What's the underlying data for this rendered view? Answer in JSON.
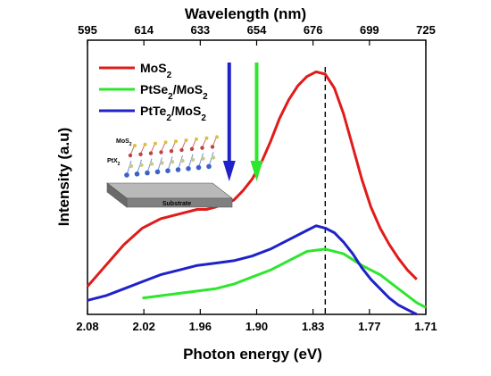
{
  "chart_data": {
    "type": "line",
    "xlabel": "Photon energy (eV)",
    "ylabel": "Intensity (a.u)",
    "top_axis_label": "Wavelength (nm)",
    "xlim": [
      2.08,
      1.71
    ],
    "x_reversed": true,
    "ylim": [
      0,
      1
    ],
    "x_ticks": [
      "2.08",
      "2.02",
      "1.96",
      "1.90",
      "1.83",
      "1.77",
      "1.71"
    ],
    "x_tick_values": [
      2.08,
      2.02,
      1.96,
      1.9,
      1.83,
      1.77,
      1.71
    ],
    "top_ticks": [
      "595",
      "614",
      "633",
      "654",
      "676",
      "699",
      "725"
    ],
    "y_ticks_shown": false,
    "legend_position": "top-left",
    "reference_line_x": 1.82,
    "arrows": [
      {
        "x": 1.925,
        "color": "#1f22c8"
      },
      {
        "x": 1.895,
        "color": "#2ee62e"
      }
    ],
    "series": [
      {
        "name": "MoS2",
        "name_sub": {
          "base": "MoS",
          "sub": "2",
          "rest": ""
        },
        "color": "#e01b1b",
        "x": [
          2.08,
          2.06,
          2.04,
          2.02,
          2.0,
          1.98,
          1.96,
          1.95,
          1.94,
          1.92,
          1.91,
          1.9,
          1.89,
          1.88,
          1.87,
          1.86,
          1.85,
          1.84,
          1.83,
          1.82,
          1.81,
          1.8,
          1.79,
          1.78,
          1.77,
          1.76,
          1.75,
          1.74,
          1.73,
          1.72
        ],
        "values": [
          0.12,
          0.21,
          0.3,
          0.37,
          0.41,
          0.43,
          0.45,
          0.45,
          0.46,
          0.49,
          0.53,
          0.58,
          0.65,
          0.74,
          0.84,
          0.92,
          0.98,
          1.02,
          1.04,
          1.03,
          0.97,
          0.86,
          0.72,
          0.58,
          0.46,
          0.37,
          0.3,
          0.24,
          0.19,
          0.15
        ]
      },
      {
        "name": "PtSe2/MoS2",
        "name_sub": {
          "base": "PtSe",
          "sub": "2",
          "rest": "/MoS",
          "sub2": "2"
        },
        "color": "#2ee62e",
        "x": [
          2.02,
          2.0,
          1.98,
          1.96,
          1.94,
          1.92,
          1.9,
          1.88,
          1.86,
          1.84,
          1.82,
          1.8,
          1.78,
          1.76,
          1.74,
          1.72,
          1.71
        ],
        "values": [
          0.07,
          0.08,
          0.09,
          0.1,
          0.11,
          0.13,
          0.16,
          0.19,
          0.23,
          0.27,
          0.28,
          0.26,
          0.21,
          0.17,
          0.11,
          0.05,
          0.03
        ]
      },
      {
        "name": "PtTe2/MoS2",
        "name_sub": {
          "base": "PtTe",
          "sub": "2",
          "rest": "/MoS",
          "sub2": "2"
        },
        "color": "#1f22c8",
        "x": [
          2.08,
          2.06,
          2.04,
          2.02,
          2.0,
          1.98,
          1.96,
          1.94,
          1.92,
          1.9,
          1.88,
          1.86,
          1.84,
          1.83,
          1.82,
          1.81,
          1.8,
          1.79,
          1.78,
          1.77,
          1.76,
          1.75,
          1.74,
          1.73,
          1.72
        ],
        "values": [
          0.06,
          0.08,
          0.11,
          0.14,
          0.17,
          0.19,
          0.21,
          0.22,
          0.23,
          0.25,
          0.28,
          0.32,
          0.36,
          0.38,
          0.37,
          0.35,
          0.31,
          0.26,
          0.2,
          0.15,
          0.11,
          0.07,
          0.04,
          0.02,
          0.0
        ]
      }
    ],
    "inset": {
      "label_top": {
        "base": "MoS",
        "sub": "2"
      },
      "label_mid": {
        "base": "PtX",
        "sub": "2"
      },
      "label_base": "Substrate"
    }
  }
}
